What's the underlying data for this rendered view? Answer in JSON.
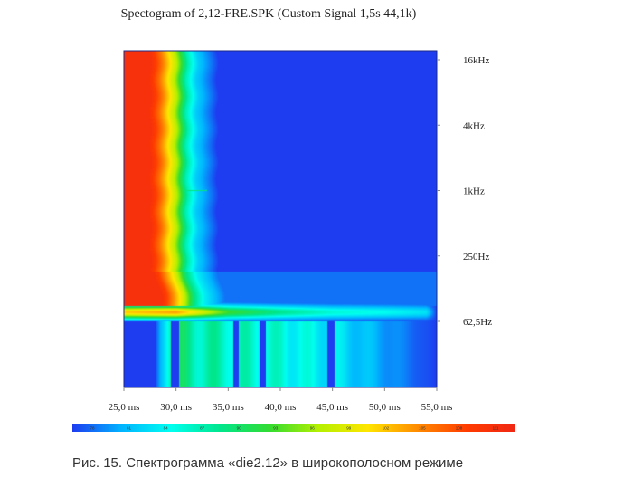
{
  "chart_data": {
    "type": "heatmap",
    "title": "Spectogram of 2,12-FRE.SPK (Custom Signal 1,5s 44,1k)",
    "x_tick_labels": [
      "25,0 ms",
      "30,0 ms",
      "35,0 ms",
      "40,0 ms",
      "45,0 ms",
      "50,0 ms",
      "55,0 ms"
    ],
    "x_ticks_ms": [
      25,
      30,
      35,
      40,
      45,
      50,
      55
    ],
    "xlim_ms": [
      25,
      55
    ],
    "y_scale": "log",
    "y_tick_labels": [
      "16kHz",
      "4kHz",
      "1kHz",
      "250Hz",
      "62,5Hz"
    ],
    "y_ticks_hz": [
      16000,
      4000,
      1000,
      250,
      62.5
    ],
    "colormap": [
      "#1E3CF0",
      "#00B4FF",
      "#00FFF0",
      "#00E68C",
      "#32DC32",
      "#B4F000",
      "#FFE600",
      "#FF8C00",
      "#FF3C00",
      "#F02814"
    ],
    "colorbar_tick_labels": [
      "78",
      "81",
      "84",
      "87",
      "90",
      "93",
      "96",
      "99",
      "102",
      "105",
      "108",
      "111"
    ],
    "background_color": "#1E3CF0",
    "high_freq_decay": {
      "t_ms": [
        25,
        27.5,
        28.5,
        30,
        31,
        32,
        34
      ],
      "level": [
        0.95,
        0.95,
        0.82,
        0.55,
        0.3,
        0.15,
        0
      ]
    },
    "bass_band": {
      "center_hz": 76,
      "t_ms": [
        25,
        30,
        35,
        40,
        45,
        50,
        54,
        55
      ],
      "level": [
        0.7,
        0.75,
        0.45,
        0.33,
        0.25,
        0.22,
        0.18,
        0
      ]
    },
    "ridge_1khz": {
      "hz": 1000,
      "t_ms_end": 33,
      "level": 0.35
    },
    "low_stripes_ms": [
      [
        29.5,
        30.3
      ],
      [
        35.5,
        36.0
      ],
      [
        38.0,
        38.6
      ],
      [
        44.5,
        45.2
      ]
    ]
  },
  "caption": "Рис. 15. Спектрограмма «die2.12» в широкополосном режиме"
}
